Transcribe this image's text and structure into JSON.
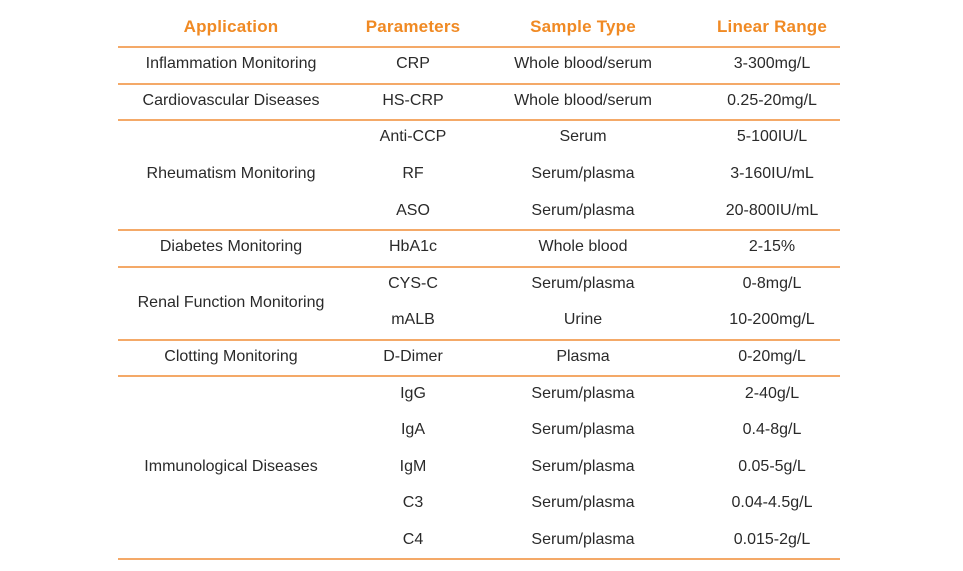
{
  "headers": {
    "application": "Application",
    "parameters": "Parameters",
    "sample_type": "Sample Type",
    "linear_range": "Linear Range"
  },
  "groups": [
    {
      "application": "Inflammation Monitoring",
      "rows": [
        {
          "parameter": "CRP",
          "sample": "Whole blood/serum",
          "range": "3-300mg/L"
        }
      ]
    },
    {
      "application": "Cardiovascular Diseases",
      "rows": [
        {
          "parameter": "HS-CRP",
          "sample": "Whole blood/serum",
          "range": "0.25-20mg/L"
        }
      ]
    },
    {
      "application": "Rheumatism Monitoring",
      "rows": [
        {
          "parameter": "Anti-CCP",
          "sample": "Serum",
          "range": "5-100IU/L"
        },
        {
          "parameter": "RF",
          "sample": "Serum/plasma",
          "range": "3-160IU/mL"
        },
        {
          "parameter": "ASO",
          "sample": "Serum/plasma",
          "range": "20-800IU/mL"
        }
      ]
    },
    {
      "application": "Diabetes Monitoring",
      "rows": [
        {
          "parameter": "HbA1c",
          "sample": "Whole blood",
          "range": "2-15%"
        }
      ]
    },
    {
      "application": "Renal Function Monitoring",
      "rows": [
        {
          "parameter": "CYS-C",
          "sample": "Serum/plasma",
          "range": "0-8mg/L"
        },
        {
          "parameter": "mALB",
          "sample": "Urine",
          "range": "10-200mg/L"
        }
      ]
    },
    {
      "application": "Clotting Monitoring",
      "rows": [
        {
          "parameter": "D-Dimer",
          "sample": "Plasma",
          "range": "0-20mg/L"
        }
      ]
    },
    {
      "application": "Immunological Diseases",
      "rows": [
        {
          "parameter": "IgG",
          "sample": "Serum/plasma",
          "range": "2-40g/L"
        },
        {
          "parameter": "IgA",
          "sample": "Serum/plasma",
          "range": "0.4-8g/L"
        },
        {
          "parameter": "IgM",
          "sample": "Serum/plasma",
          "range": "0.05-5g/L"
        },
        {
          "parameter": "C3",
          "sample": "Serum/plasma",
          "range": "0.04-4.5g/L"
        },
        {
          "parameter": "C4",
          "sample": "Serum/plasma",
          "range": "0.015-2g/L"
        }
      ]
    }
  ],
  "colors": {
    "header_text": "#f08a24",
    "rule": "#f4a968",
    "body_text": "#2a2a2a"
  }
}
